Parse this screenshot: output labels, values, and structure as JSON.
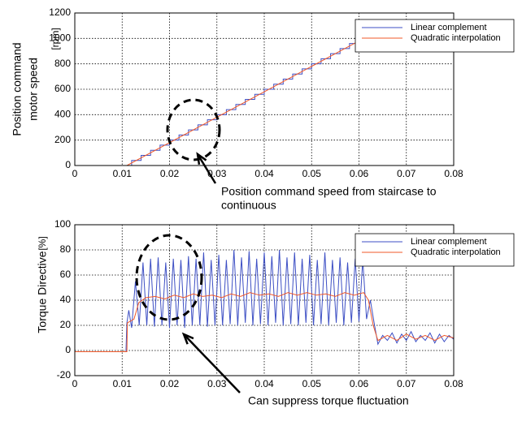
{
  "chart_data": [
    {
      "type": "line",
      "ylabel": [
        "Position command",
        "motor speed"
      ],
      "yunit": "[rpm]",
      "xlim": [
        0,
        0.08
      ],
      "xticks": [
        0,
        0.01,
        0.02,
        0.03,
        0.04,
        0.05,
        0.06,
        0.07,
        0.08
      ],
      "ylim": [
        0,
        1200
      ],
      "yticks": [
        0,
        200,
        400,
        600,
        800,
        1000,
        1200
      ],
      "grid": true,
      "legend": "upper right",
      "annotation": [
        "Position command speed from staircase to",
        "continuous"
      ],
      "series": [
        {
          "name": "Linear complement",
          "color": "#3d4fc4",
          "x": [
            0,
            0.012,
            0.012,
            0.014,
            0.014,
            0.016,
            0.016,
            0.018,
            0.018,
            0.02,
            0.02,
            0.022,
            0.022,
            0.024,
            0.024,
            0.026,
            0.026,
            0.028,
            0.028,
            0.03,
            0.03,
            0.032,
            0.032,
            0.034,
            0.034,
            0.036,
            0.036,
            0.038,
            0.038,
            0.04,
            0.04,
            0.042,
            0.042,
            0.044,
            0.044,
            0.046,
            0.046,
            0.048,
            0.048,
            0.05,
            0.05,
            0.052,
            0.052,
            0.054,
            0.054,
            0.056,
            0.056,
            0.058,
            0.058,
            0.06,
            0.06,
            0.08
          ],
          "values": [
            0,
            0,
            40,
            40,
            80,
            80,
            120,
            120,
            160,
            160,
            200,
            200,
            240,
            240,
            280,
            280,
            320,
            320,
            360,
            360,
            400,
            400,
            440,
            440,
            480,
            480,
            520,
            520,
            560,
            560,
            600,
            600,
            640,
            640,
            680,
            680,
            720,
            720,
            760,
            760,
            800,
            800,
            840,
            840,
            880,
            880,
            920,
            920,
            960,
            960,
            1000,
            1000
          ]
        },
        {
          "name": "Quadratic interpolation",
          "color": "#f0582a",
          "x": [
            0,
            0.011,
            0.061,
            0.08
          ],
          "values": [
            0,
            0,
            1000,
            1000
          ]
        }
      ]
    },
    {
      "type": "line",
      "ylabel": [
        "Torque Directive"
      ],
      "yunit": "[%]",
      "xlim": [
        0,
        0.08
      ],
      "xticks": [
        0,
        0.01,
        0.02,
        0.03,
        0.04,
        0.05,
        0.06,
        0.07,
        0.08
      ],
      "ylim": [
        -20,
        100
      ],
      "yticks": [
        -20,
        0,
        20,
        40,
        60,
        80,
        100
      ],
      "grid": true,
      "legend": "upper right",
      "annotation": [
        "Can suppress torque fluctuation"
      ],
      "series": [
        {
          "name": "Linear complement",
          "color": "#3d4fc4",
          "x": [
            0,
            0.0108,
            0.011,
            0.0114,
            0.012,
            0.0128,
            0.0136,
            0.0144,
            0.0152,
            0.016,
            0.0168,
            0.0176,
            0.0184,
            0.0192,
            0.02,
            0.0208,
            0.0216,
            0.0224,
            0.0232,
            0.024,
            0.0248,
            0.0256,
            0.0264,
            0.0272,
            0.028,
            0.0288,
            0.0296,
            0.0304,
            0.0312,
            0.032,
            0.0328,
            0.0336,
            0.0344,
            0.0352,
            0.036,
            0.0368,
            0.0376,
            0.0384,
            0.0392,
            0.04,
            0.0408,
            0.0416,
            0.0424,
            0.0432,
            0.044,
            0.0448,
            0.0456,
            0.0464,
            0.0472,
            0.048,
            0.0488,
            0.0496,
            0.0504,
            0.0512,
            0.052,
            0.0528,
            0.0536,
            0.0544,
            0.0552,
            0.056,
            0.0568,
            0.0576,
            0.0584,
            0.0592,
            0.06,
            0.0608,
            0.0616,
            0.0624,
            0.0632,
            0.064,
            0.065,
            0.066,
            0.067,
            0.068,
            0.069,
            0.07,
            0.071,
            0.072,
            0.073,
            0.074,
            0.075,
            0.076,
            0.077,
            0.078,
            0.079,
            0.08
          ],
          "values": [
            -1,
            -1,
            22,
            32,
            18,
            55,
            20,
            70,
            20,
            73,
            19,
            74,
            20,
            70,
            18,
            73,
            20,
            72,
            18,
            75,
            20,
            73,
            20,
            78,
            19,
            72,
            20,
            76,
            20,
            72,
            21,
            80,
            20,
            74,
            22,
            79,
            20,
            73,
            21,
            78,
            20,
            75,
            22,
            80,
            20,
            74,
            21,
            78,
            20,
            73,
            22,
            76,
            20,
            72,
            21,
            78,
            20,
            72,
            22,
            74,
            20,
            70,
            22,
            73,
            23,
            72,
            25,
            40,
            22,
            5,
            12,
            8,
            14,
            6,
            13,
            8,
            15,
            7,
            12,
            8,
            14,
            6,
            13,
            7,
            12,
            9
          ]
        },
        {
          "name": "Quadratic interpolation",
          "color": "#f0582a",
          "x": [
            0,
            0.011,
            0.0111,
            0.0125,
            0.0135,
            0.015,
            0.017,
            0.019,
            0.021,
            0.023,
            0.025,
            0.027,
            0.029,
            0.031,
            0.033,
            0.035,
            0.037,
            0.039,
            0.041,
            0.043,
            0.045,
            0.047,
            0.049,
            0.051,
            0.053,
            0.055,
            0.057,
            0.059,
            0.061,
            0.062,
            0.063,
            0.064,
            0.066,
            0.068,
            0.07,
            0.072,
            0.074,
            0.076,
            0.078,
            0.08
          ],
          "values": [
            -1,
            -1,
            22,
            25,
            38,
            42,
            43,
            41,
            44,
            42,
            45,
            43,
            44,
            42,
            45,
            43,
            46,
            44,
            45,
            43,
            46,
            44,
            46,
            44,
            45,
            43,
            46,
            44,
            46,
            40,
            20,
            8,
            12,
            8,
            13,
            9,
            12,
            8,
            12,
            10
          ]
        }
      ]
    }
  ]
}
